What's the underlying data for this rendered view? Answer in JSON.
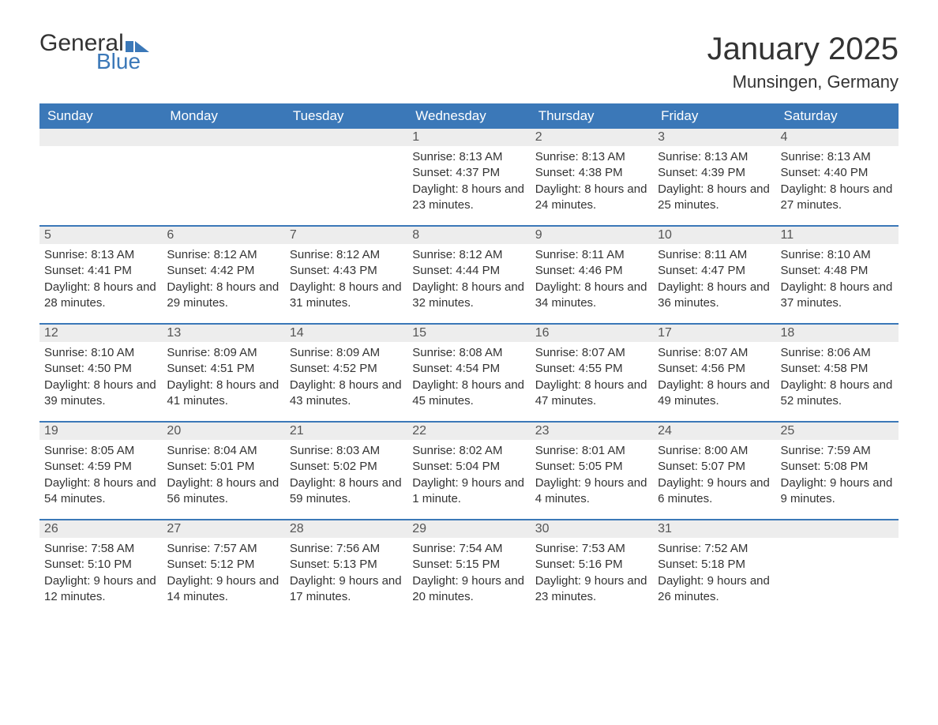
{
  "logo": {
    "word1": "General",
    "word2": "Blue"
  },
  "title": "January 2025",
  "location": "Munsingen, Germany",
  "colors": {
    "header_bg": "#3b78b8",
    "header_text": "#ffffff",
    "daynum_bg": "#ededed",
    "text": "#333333",
    "week_divider": "#3b78b8",
    "background": "#ffffff"
  },
  "typography": {
    "title_fontsize": 40,
    "location_fontsize": 22,
    "dayheader_fontsize": 17,
    "daynum_fontsize": 16,
    "body_fontsize": 15
  },
  "calendar": {
    "type": "table",
    "day_headers": [
      "Sunday",
      "Monday",
      "Tuesday",
      "Wednesday",
      "Thursday",
      "Friday",
      "Saturday"
    ],
    "weeks": [
      [
        {
          "num": "",
          "sunrise": "",
          "sunset": "",
          "daylight": ""
        },
        {
          "num": "",
          "sunrise": "",
          "sunset": "",
          "daylight": ""
        },
        {
          "num": "",
          "sunrise": "",
          "sunset": "",
          "daylight": ""
        },
        {
          "num": "1",
          "sunrise": "Sunrise: 8:13 AM",
          "sunset": "Sunset: 4:37 PM",
          "daylight": "Daylight: 8 hours and 23 minutes."
        },
        {
          "num": "2",
          "sunrise": "Sunrise: 8:13 AM",
          "sunset": "Sunset: 4:38 PM",
          "daylight": "Daylight: 8 hours and 24 minutes."
        },
        {
          "num": "3",
          "sunrise": "Sunrise: 8:13 AM",
          "sunset": "Sunset: 4:39 PM",
          "daylight": "Daylight: 8 hours and 25 minutes."
        },
        {
          "num": "4",
          "sunrise": "Sunrise: 8:13 AM",
          "sunset": "Sunset: 4:40 PM",
          "daylight": "Daylight: 8 hours and 27 minutes."
        }
      ],
      [
        {
          "num": "5",
          "sunrise": "Sunrise: 8:13 AM",
          "sunset": "Sunset: 4:41 PM",
          "daylight": "Daylight: 8 hours and 28 minutes."
        },
        {
          "num": "6",
          "sunrise": "Sunrise: 8:12 AM",
          "sunset": "Sunset: 4:42 PM",
          "daylight": "Daylight: 8 hours and 29 minutes."
        },
        {
          "num": "7",
          "sunrise": "Sunrise: 8:12 AM",
          "sunset": "Sunset: 4:43 PM",
          "daylight": "Daylight: 8 hours and 31 minutes."
        },
        {
          "num": "8",
          "sunrise": "Sunrise: 8:12 AM",
          "sunset": "Sunset: 4:44 PM",
          "daylight": "Daylight: 8 hours and 32 minutes."
        },
        {
          "num": "9",
          "sunrise": "Sunrise: 8:11 AM",
          "sunset": "Sunset: 4:46 PM",
          "daylight": "Daylight: 8 hours and 34 minutes."
        },
        {
          "num": "10",
          "sunrise": "Sunrise: 8:11 AM",
          "sunset": "Sunset: 4:47 PM",
          "daylight": "Daylight: 8 hours and 36 minutes."
        },
        {
          "num": "11",
          "sunrise": "Sunrise: 8:10 AM",
          "sunset": "Sunset: 4:48 PM",
          "daylight": "Daylight: 8 hours and 37 minutes."
        }
      ],
      [
        {
          "num": "12",
          "sunrise": "Sunrise: 8:10 AM",
          "sunset": "Sunset: 4:50 PM",
          "daylight": "Daylight: 8 hours and 39 minutes."
        },
        {
          "num": "13",
          "sunrise": "Sunrise: 8:09 AM",
          "sunset": "Sunset: 4:51 PM",
          "daylight": "Daylight: 8 hours and 41 minutes."
        },
        {
          "num": "14",
          "sunrise": "Sunrise: 8:09 AM",
          "sunset": "Sunset: 4:52 PM",
          "daylight": "Daylight: 8 hours and 43 minutes."
        },
        {
          "num": "15",
          "sunrise": "Sunrise: 8:08 AM",
          "sunset": "Sunset: 4:54 PM",
          "daylight": "Daylight: 8 hours and 45 minutes."
        },
        {
          "num": "16",
          "sunrise": "Sunrise: 8:07 AM",
          "sunset": "Sunset: 4:55 PM",
          "daylight": "Daylight: 8 hours and 47 minutes."
        },
        {
          "num": "17",
          "sunrise": "Sunrise: 8:07 AM",
          "sunset": "Sunset: 4:56 PM",
          "daylight": "Daylight: 8 hours and 49 minutes."
        },
        {
          "num": "18",
          "sunrise": "Sunrise: 8:06 AM",
          "sunset": "Sunset: 4:58 PM",
          "daylight": "Daylight: 8 hours and 52 minutes."
        }
      ],
      [
        {
          "num": "19",
          "sunrise": "Sunrise: 8:05 AM",
          "sunset": "Sunset: 4:59 PM",
          "daylight": "Daylight: 8 hours and 54 minutes."
        },
        {
          "num": "20",
          "sunrise": "Sunrise: 8:04 AM",
          "sunset": "Sunset: 5:01 PM",
          "daylight": "Daylight: 8 hours and 56 minutes."
        },
        {
          "num": "21",
          "sunrise": "Sunrise: 8:03 AM",
          "sunset": "Sunset: 5:02 PM",
          "daylight": "Daylight: 8 hours and 59 minutes."
        },
        {
          "num": "22",
          "sunrise": "Sunrise: 8:02 AM",
          "sunset": "Sunset: 5:04 PM",
          "daylight": "Daylight: 9 hours and 1 minute."
        },
        {
          "num": "23",
          "sunrise": "Sunrise: 8:01 AM",
          "sunset": "Sunset: 5:05 PM",
          "daylight": "Daylight: 9 hours and 4 minutes."
        },
        {
          "num": "24",
          "sunrise": "Sunrise: 8:00 AM",
          "sunset": "Sunset: 5:07 PM",
          "daylight": "Daylight: 9 hours and 6 minutes."
        },
        {
          "num": "25",
          "sunrise": "Sunrise: 7:59 AM",
          "sunset": "Sunset: 5:08 PM",
          "daylight": "Daylight: 9 hours and 9 minutes."
        }
      ],
      [
        {
          "num": "26",
          "sunrise": "Sunrise: 7:58 AM",
          "sunset": "Sunset: 5:10 PM",
          "daylight": "Daylight: 9 hours and 12 minutes."
        },
        {
          "num": "27",
          "sunrise": "Sunrise: 7:57 AM",
          "sunset": "Sunset: 5:12 PM",
          "daylight": "Daylight: 9 hours and 14 minutes."
        },
        {
          "num": "28",
          "sunrise": "Sunrise: 7:56 AM",
          "sunset": "Sunset: 5:13 PM",
          "daylight": "Daylight: 9 hours and 17 minutes."
        },
        {
          "num": "29",
          "sunrise": "Sunrise: 7:54 AM",
          "sunset": "Sunset: 5:15 PM",
          "daylight": "Daylight: 9 hours and 20 minutes."
        },
        {
          "num": "30",
          "sunrise": "Sunrise: 7:53 AM",
          "sunset": "Sunset: 5:16 PM",
          "daylight": "Daylight: 9 hours and 23 minutes."
        },
        {
          "num": "31",
          "sunrise": "Sunrise: 7:52 AM",
          "sunset": "Sunset: 5:18 PM",
          "daylight": "Daylight: 9 hours and 26 minutes."
        },
        {
          "num": "",
          "sunrise": "",
          "sunset": "",
          "daylight": ""
        }
      ]
    ]
  }
}
